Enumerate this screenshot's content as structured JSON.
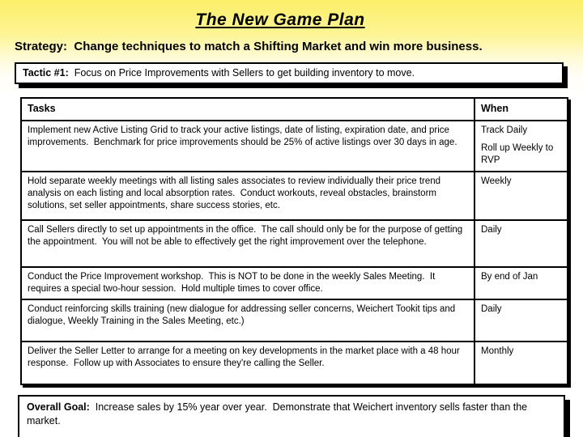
{
  "title": "The New Game Plan",
  "strategy": {
    "label": "Strategy:",
    "text": "  Change techniques to match a Shifting Market and win more business."
  },
  "tactic": {
    "label": "Tactic #1:",
    "text": "  Focus on Price Improvements with Sellers to get building inventory to move."
  },
  "table": {
    "headers": [
      "Tasks",
      "When"
    ],
    "rows": [
      {
        "task": "Implement new Active Listing Grid to track your active listings, date of listing, expiration date, and price improvements.  Benchmark for price improvements should be 25% of active listings over 30 days in age.",
        "when": [
          "Track Daily",
          "Roll up Weekly to RVP"
        ]
      },
      {
        "task": "Hold separate weekly meetings with all listing sales associates to review individually their price trend analysis on each listing and local absorption rates.  Conduct workouts, reveal obstacles, brainstorm solutions, set seller appointments, share success stories, etc.",
        "when": [
          "Weekly"
        ]
      },
      {
        "task": "Call Sellers directly to set up appointments in the office.  The call should only be for the purpose of getting the appointment.  You will not be able to effectively get the right improvement over the telephone.",
        "when": [
          "Daily"
        ]
      },
      {
        "task": "Conduct the Price Improvement workshop.  This is NOT to be done in the weekly Sales Meeting.  It requires a special two-hour session.  Hold multiple times to cover office.",
        "when": [
          "By end of Jan"
        ]
      },
      {
        "task": "Conduct reinforcing skills training (new dialogue for addressing seller concerns, Weichert Tookit tips and dialogue, Weekly Training in the Sales Meeting, etc.)",
        "when": [
          "Daily"
        ]
      },
      {
        "task": "Deliver the Seller Letter to arrange for a meeting on key developments in the market place with a 48 hour response.  Follow up with Associates to ensure they're calling the Seller.",
        "when": [
          "Monthly"
        ]
      }
    ]
  },
  "goal": {
    "label": "Overall Goal:",
    "text": "  Increase sales by 15% year over year.  Demonstrate that Weichert inventory sells faster than the market."
  },
  "colors": {
    "background_top": "#FCEF68",
    "background_bottom": "#FFFFFF",
    "box_background": "#FFFFFF",
    "border": "#000000",
    "text": "#000000"
  }
}
